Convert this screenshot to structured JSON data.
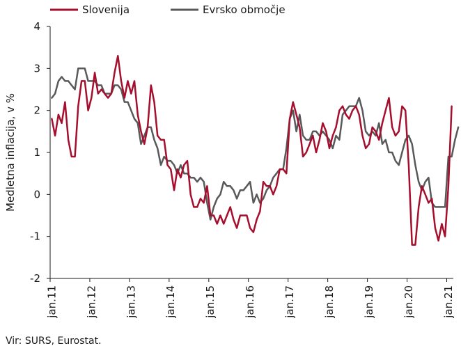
{
  "chart_data": {
    "type": "line",
    "ylabel": "Medletna inflacija, v %",
    "ylim": [
      -2,
      4
    ],
    "yticks": [
      "4",
      "3",
      "2",
      "1",
      "0",
      "-1",
      "-2"
    ],
    "xticklabels": [
      "jan.11",
      "jan.12",
      "jan.13",
      "jan.14",
      "jan.15",
      "jan.16",
      "jan.17",
      "jan.18",
      "jan.19",
      "jan.20",
      "jan.21"
    ],
    "grid": false,
    "legend_position": "top-left",
    "series": [
      {
        "name": "Slovenija",
        "color": "#a50f2d",
        "values": [
          1.8,
          1.4,
          1.9,
          1.7,
          2.2,
          1.3,
          0.9,
          0.9,
          2.1,
          2.7,
          2.7,
          2.0,
          2.3,
          2.9,
          2.4,
          2.5,
          2.4,
          2.3,
          2.4,
          2.9,
          3.3,
          2.7,
          2.3,
          2.7,
          2.4,
          2.7,
          1.9,
          1.5,
          1.2,
          1.6,
          2.6,
          2.2,
          1.4,
          1.3,
          1.3,
          0.7,
          0.6,
          0.1,
          0.6,
          0.4,
          0.7,
          0.8,
          0.0,
          -0.3,
          -0.3,
          -0.1,
          -0.2,
          0.2,
          -0.5,
          -0.5,
          -0.7,
          -0.5,
          -0.7,
          -0.5,
          -0.3,
          -0.6,
          -0.8,
          -0.5,
          -0.5,
          -0.5,
          -0.8,
          -0.9,
          -0.6,
          -0.4,
          0.3,
          0.2,
          0.2,
          0.0,
          0.2,
          0.6,
          0.6,
          0.5,
          1.8,
          2.2,
          1.9,
          1.6,
          0.9,
          1.0,
          1.2,
          1.4,
          1.0,
          1.3,
          1.7,
          1.5,
          1.1,
          1.4,
          1.6,
          2.0,
          2.1,
          1.9,
          1.8,
          2.0,
          2.1,
          1.9,
          1.4,
          1.1,
          1.2,
          1.6,
          1.5,
          1.3,
          1.7,
          2.0,
          2.3,
          1.6,
          1.4,
          1.5,
          2.1,
          2.0,
          0.7,
          -1.2,
          -1.2,
          -0.3,
          0.2,
          0.0,
          -0.2,
          -0.1,
          -0.8,
          -1.1,
          -0.7,
          -1.0,
          0.2,
          2.1
        ]
      },
      {
        "name": "Evrsko območje",
        "color": "#58595b",
        "values": [
          2.3,
          2.4,
          2.7,
          2.8,
          2.7,
          2.7,
          2.6,
          2.5,
          3.0,
          3.0,
          3.0,
          2.7,
          2.7,
          2.7,
          2.6,
          2.6,
          2.4,
          2.4,
          2.4,
          2.6,
          2.6,
          2.5,
          2.2,
          2.2,
          2.0,
          1.8,
          1.7,
          1.2,
          1.4,
          1.6,
          1.6,
          1.3,
          1.1,
          0.7,
          0.9,
          0.8,
          0.8,
          0.7,
          0.5,
          0.7,
          0.5,
          0.5,
          0.4,
          0.4,
          0.3,
          0.4,
          0.3,
          -0.2,
          -0.6,
          -0.3,
          -0.1,
          0.0,
          0.3,
          0.2,
          0.2,
          0.1,
          -0.1,
          0.1,
          0.1,
          0.2,
          0.3,
          -0.2,
          0.0,
          -0.2,
          -0.1,
          0.1,
          0.2,
          0.4,
          0.5,
          0.6,
          0.6,
          1.1,
          1.8,
          2.0,
          1.5,
          1.9,
          1.4,
          1.3,
          1.3,
          1.5,
          1.5,
          1.4,
          1.5,
          1.4,
          1.3,
          1.1,
          1.4,
          1.3,
          1.9,
          2.0,
          2.1,
          2.1,
          2.1,
          2.3,
          2.0,
          1.5,
          1.4,
          1.5,
          1.4,
          1.7,
          1.2,
          1.3,
          1.0,
          1.0,
          0.8,
          0.7,
          1.0,
          1.3,
          1.4,
          1.2,
          0.7,
          0.3,
          0.1,
          0.3,
          0.4,
          -0.2,
          -0.3,
          -0.3,
          -0.3,
          -0.3,
          0.9,
          0.9,
          1.3,
          1.6
        ]
      }
    ]
  },
  "source_note": "Vir: SURS, Eurostat."
}
